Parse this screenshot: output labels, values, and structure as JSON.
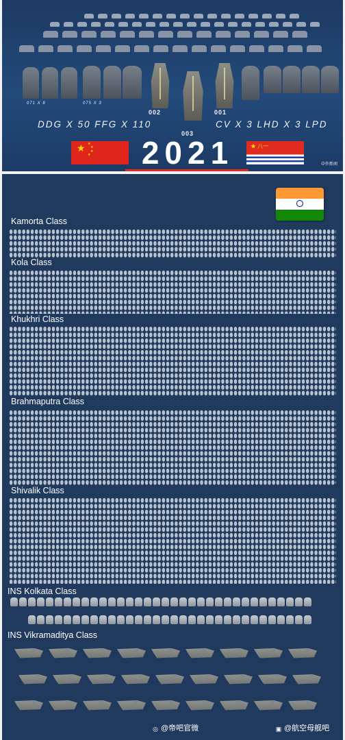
{
  "top_panel": {
    "hull_labels": [
      "071 X 8",
      "075 X 3"
    ],
    "carrier_numbers": [
      "002",
      "003",
      "001"
    ],
    "force_counts": "DDG X 50   FFG X 110",
    "force_counts_right": "CV X 3  LHD X 3  LPD",
    "year": "2021",
    "source_watermark": "中外新闻"
  },
  "bottom_panel": {
    "classes": [
      "Kamorta Class",
      "Kola Class",
      "Khukhri Class",
      "Brahmaputra Class",
      "Shivalik Class",
      "INS Kolkata Class",
      "INS Vikramaditya Class"
    ],
    "watermarks": [
      "@帝吧官微",
      "@航空母舰吧"
    ]
  },
  "colors": {
    "navy_bg": "#203a5e",
    "cn_red": "#e0261c",
    "cn_yellow": "#ffde00",
    "in_saffron": "#ff9933",
    "in_green": "#138808"
  }
}
